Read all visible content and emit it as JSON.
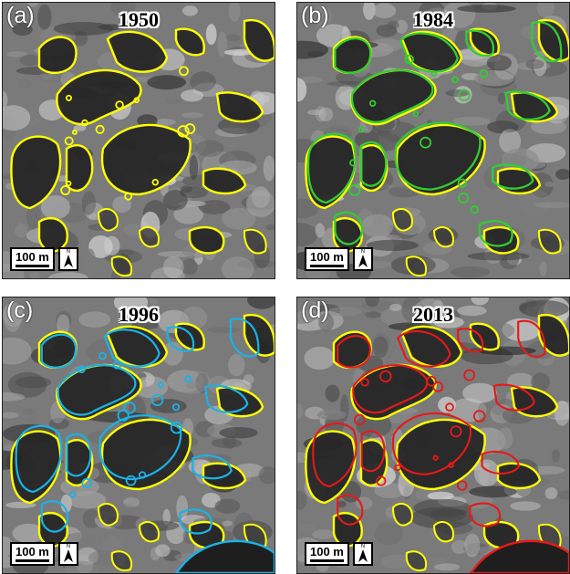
{
  "panels": [
    {
      "id": "a",
      "label": "(a)",
      "year": "1950",
      "scale_label": "100 m",
      "north_label": "N",
      "outline_colors": [
        "#ffff00"
      ]
    },
    {
      "id": "b",
      "label": "(b)",
      "year": "1984",
      "scale_label": "100 m",
      "north_label": "N",
      "outline_colors": [
        "#ffff00",
        "#33cc33"
      ]
    },
    {
      "id": "c",
      "label": "(c)",
      "year": "1996",
      "scale_label": "100 m",
      "north_label": "N",
      "outline_colors": [
        "#ffff00",
        "#1ab2e6"
      ]
    },
    {
      "id": "d",
      "label": "(d)",
      "year": "2013",
      "scale_label": "100 m",
      "north_label": "N",
      "outline_colors": [
        "#ffff00",
        "#e61919"
      ]
    }
  ],
  "icons": {
    "north_arrow": "north-arrow-icon"
  }
}
